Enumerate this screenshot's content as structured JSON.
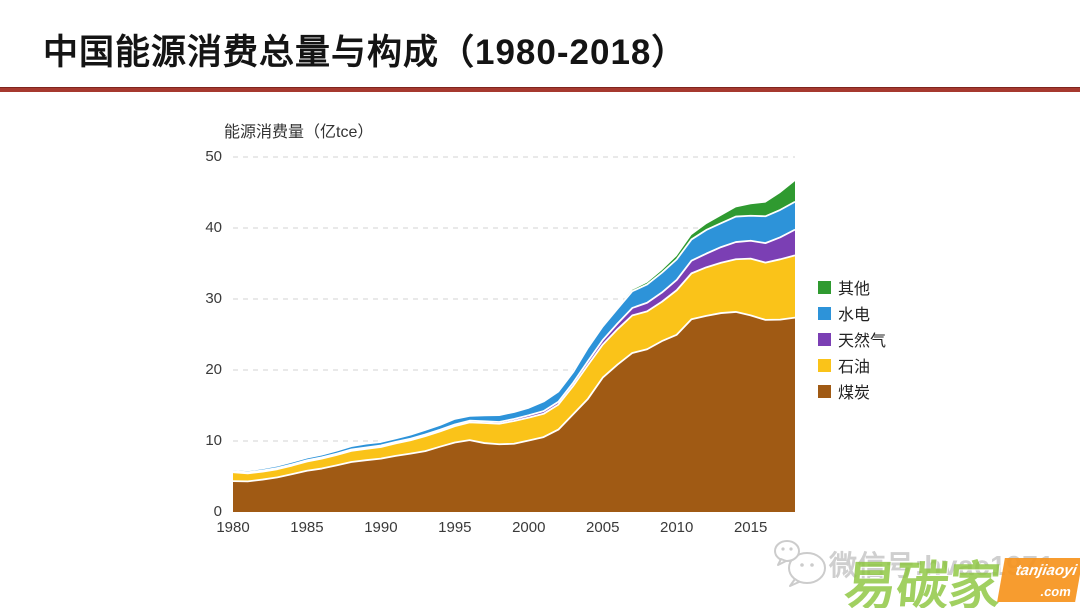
{
  "title": "中国能源消费总量与构成（1980-2018）",
  "colors": {
    "divider_red": "#a6392f",
    "grid": "#dcdcdc",
    "separator": "#ffffff",
    "coal": "#a05a14",
    "oil": "#fac319",
    "gas": "#7b3fb4",
    "hydro": "#2d93d9",
    "other": "#2f9a30"
  },
  "watermark": {
    "wechat_label": "微信号:hvac1971",
    "brand_text": "易碳家",
    "brand_latin": "tanjiaoyi",
    "brand_domain": ".com"
  },
  "chart_data": {
    "type": "area",
    "stacked": true,
    "title": "中国能源消费总量与构成（1980-2018）",
    "axis_title": "能源消费量（亿tce）",
    "xlabel": "",
    "ylabel": "能源消费量（亿tce）",
    "ylim": [
      0,
      50
    ],
    "y_ticks": [
      0,
      10,
      20,
      30,
      40,
      50
    ],
    "grid": "dashed-horizontal",
    "legend_position": "right",
    "x": [
      1980,
      1981,
      1982,
      1983,
      1984,
      1985,
      1986,
      1987,
      1988,
      1989,
      1990,
      1991,
      1992,
      1993,
      1994,
      1995,
      1996,
      1997,
      1998,
      1999,
      2000,
      2001,
      2002,
      2003,
      2004,
      2005,
      2006,
      2007,
      2008,
      2009,
      2010,
      2011,
      2012,
      2013,
      2014,
      2015,
      2016,
      2017,
      2018
    ],
    "x_tick_labels": [
      "1980",
      "1985",
      "1990",
      "1995",
      "2000",
      "2005",
      "2010",
      "2015"
    ],
    "series": [
      {
        "id": "coal",
        "name": "煤炭",
        "color": "#a05a14",
        "values": [
          4.35,
          4.31,
          4.57,
          4.88,
          5.33,
          5.81,
          6.12,
          6.56,
          7.04,
          7.3,
          7.52,
          7.9,
          8.22,
          8.58,
          9.2,
          9.79,
          10.12,
          9.71,
          9.54,
          9.61,
          10.07,
          10.55,
          11.61,
          13.76,
          15.94,
          18.93,
          20.76,
          22.4,
          22.92,
          24.07,
          24.96,
          27.15,
          27.63,
          28.02,
          28.18,
          27.7,
          27.06,
          27.1,
          27.38
        ]
      },
      {
        "id": "oil",
        "name": "石油",
        "color": "#fac319",
        "values": [
          1.25,
          1.13,
          1.12,
          1.15,
          1.21,
          1.31,
          1.4,
          1.47,
          1.57,
          1.6,
          1.64,
          1.77,
          1.89,
          2.11,
          2.16,
          2.3,
          2.5,
          2.82,
          2.89,
          3.21,
          3.23,
          3.28,
          3.52,
          3.99,
          4.77,
          4.65,
          4.99,
          5.29,
          5.33,
          5.54,
          6.27,
          6.46,
          6.83,
          7.09,
          7.42,
          7.99,
          8.06,
          8.49,
          8.77
        ]
      },
      {
        "id": "gas",
        "name": "天然气",
        "color": "#7b3fb4",
        "values": [
          0.19,
          0.15,
          0.15,
          0.16,
          0.17,
          0.17,
          0.17,
          0.18,
          0.19,
          0.19,
          0.21,
          0.21,
          0.21,
          0.22,
          0.23,
          0.24,
          0.24,
          0.24,
          0.25,
          0.28,
          0.32,
          0.38,
          0.39,
          0.45,
          0.53,
          0.63,
          0.8,
          1.05,
          1.22,
          1.3,
          1.45,
          1.79,
          1.93,
          2.2,
          2.42,
          2.52,
          2.75,
          3.1,
          3.62
        ]
      },
      {
        "id": "hydro",
        "name": "水电",
        "color": "#2d93d9",
        "values": [
          0.24,
          0.27,
          0.3,
          0.34,
          0.36,
          0.37,
          0.39,
          0.44,
          0.48,
          0.54,
          0.5,
          0.49,
          0.58,
          0.66,
          0.68,
          0.79,
          0.68,
          0.85,
          0.97,
          0.99,
          1.07,
          1.36,
          1.45,
          1.5,
          1.9,
          1.93,
          2.08,
          2.36,
          2.58,
          2.79,
          2.9,
          2.99,
          3.33,
          3.36,
          3.59,
          3.52,
          3.78,
          3.86,
          3.93
        ]
      },
      {
        "id": "other",
        "name": "其他",
        "color": "#2f9a30",
        "values": [
          0,
          0,
          0,
          0,
          0,
          0,
          0,
          0,
          0,
          0,
          0,
          0,
          0,
          0,
          0,
          0,
          0,
          0,
          0,
          0,
          0.03,
          0.03,
          0.04,
          0.05,
          0.06,
          0.08,
          0.12,
          0.18,
          0.25,
          0.35,
          0.48,
          0.62,
          0.82,
          1.05,
          1.3,
          1.62,
          1.93,
          2.38,
          2.9
        ]
      }
    ],
    "legend_order": [
      "其他",
      "水电",
      "天然气",
      "石油",
      "煤炭"
    ]
  }
}
